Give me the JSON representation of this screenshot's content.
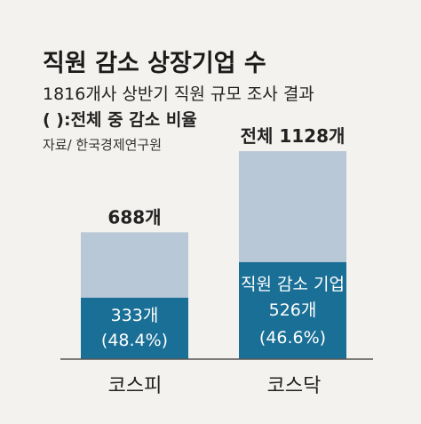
{
  "chart_data": {
    "type": "bar",
    "title": "직원 감소 상장기업 수",
    "subtitle": "1816개사 상반기 직원 규모 조사 결과",
    "note": "( ):전체 중 감소 비율",
    "source": "자료/ 한국경제연구원",
    "categories": [
      "코스피",
      "코스닥"
    ],
    "series": [
      {
        "name": "전체",
        "values": [
          688,
          1128
        ]
      },
      {
        "name": "직원 감소 기업",
        "values": [
          333,
          526
        ]
      }
    ],
    "total_labels": [
      "688개",
      "전체 1128개"
    ],
    "inner_series_label": "직원 감소 기업",
    "inner_value_labels": [
      "333개",
      "526개"
    ],
    "inner_pct_labels": [
      "(48.4%)",
      "(46.6%)"
    ],
    "colors": {
      "total": "#b9c8d6",
      "decrease": "#1a6f96",
      "axis": "#555555"
    }
  }
}
